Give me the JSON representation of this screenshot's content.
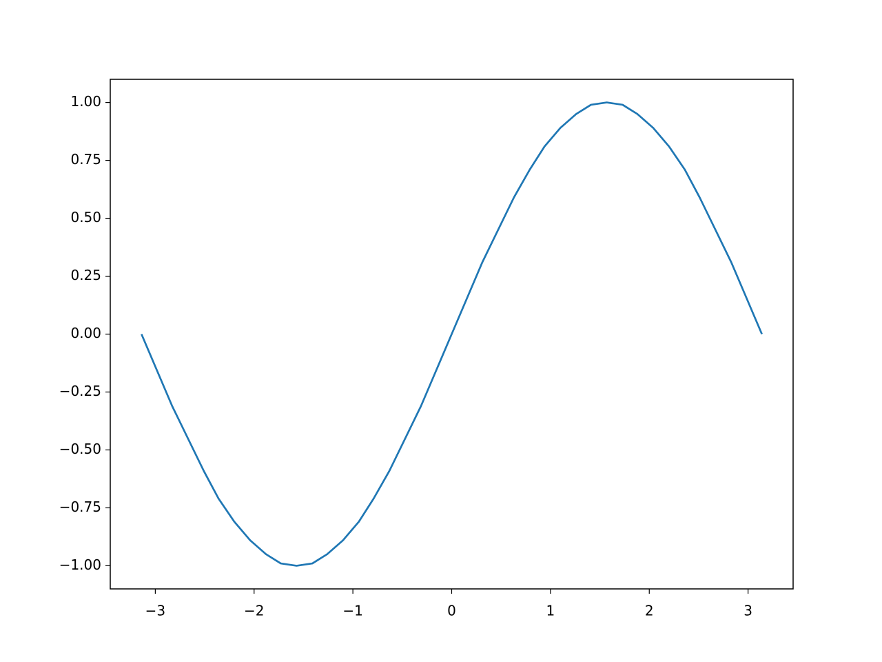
{
  "chart_data": {
    "type": "line",
    "x": [
      -3.14,
      -2.98,
      -2.83,
      -2.67,
      -2.51,
      -2.36,
      -2.2,
      -2.04,
      -1.88,
      -1.73,
      -1.57,
      -1.41,
      -1.26,
      -1.1,
      -0.94,
      -0.79,
      -0.63,
      -0.47,
      -0.31,
      -0.16,
      0,
      0.16,
      0.31,
      0.47,
      0.63,
      0.79,
      0.94,
      1.1,
      1.26,
      1.41,
      1.57,
      1.73,
      1.88,
      2.04,
      2.2,
      2.36,
      2.51,
      2.67,
      2.83,
      2.98,
      3.14
    ],
    "series": [
      {
        "color": "#1f77b4",
        "values": [
          0,
          -0.16,
          -0.31,
          -0.45,
          -0.59,
          -0.71,
          -0.81,
          -0.89,
          -0.95,
          -0.99,
          -1,
          -0.99,
          -0.95,
          -0.89,
          -0.81,
          -0.71,
          -0.59,
          -0.45,
          -0.31,
          -0.16,
          0,
          0.16,
          0.31,
          0.45,
          0.59,
          0.71,
          0.81,
          0.89,
          0.95,
          0.99,
          1,
          0.99,
          0.95,
          0.89,
          0.81,
          0.71,
          0.59,
          0.45,
          0.31,
          0.16,
          0
        ]
      }
    ],
    "xlim": [
      -3.456,
      3.456
    ],
    "ylim": [
      -1.1,
      1.1
    ],
    "xticks": [
      {
        "value": -3,
        "label": "−3"
      },
      {
        "value": -2,
        "label": "−2"
      },
      {
        "value": -1,
        "label": "−1"
      },
      0,
      1,
      2,
      3
    ],
    "yticks": [
      {
        "value": -1,
        "label": "−1.00"
      },
      {
        "value": -0.75,
        "label": "−0.75"
      },
      {
        "value": -0.5,
        "label": "−0.50"
      },
      {
        "value": -0.25,
        "label": "−0.25"
      },
      {
        "value": 0,
        "label": "0.00"
      },
      {
        "value": 0.25,
        "label": "0.25"
      },
      {
        "value": 0.5,
        "label": "0.50"
      },
      {
        "value": 0.75,
        "label": "0.75"
      },
      {
        "value": 1,
        "label": "1.00"
      }
    ],
    "grid": false
  }
}
